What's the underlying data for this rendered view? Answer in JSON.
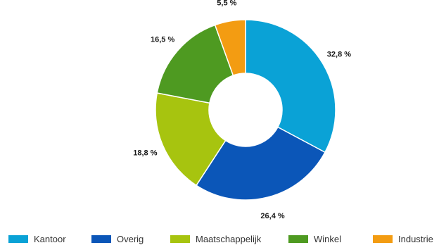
{
  "chart_data": {
    "type": "pie",
    "donut": true,
    "start_angle_deg": 0,
    "direction": "clockwise",
    "categories": [
      "Kantoor",
      "Overig",
      "Maatschappelijk",
      "Winkel",
      "Industrie"
    ],
    "values": [
      32.8,
      26.4,
      18.8,
      16.5,
      5.5
    ],
    "value_labels": [
      "32,8 %",
      "26,4 %",
      "18,8 %",
      "16,5 %",
      "5,5 %"
    ],
    "colors": [
      "#0aa2d6",
      "#0b56b8",
      "#a7c40f",
      "#4e9a21",
      "#f39c12"
    ],
    "legend": {
      "position": "bottom",
      "labels": [
        "Kantoor",
        "Overig",
        "Maatschappelijk",
        "Winkel",
        "Industrie"
      ]
    },
    "title": "",
    "grid": false
  }
}
